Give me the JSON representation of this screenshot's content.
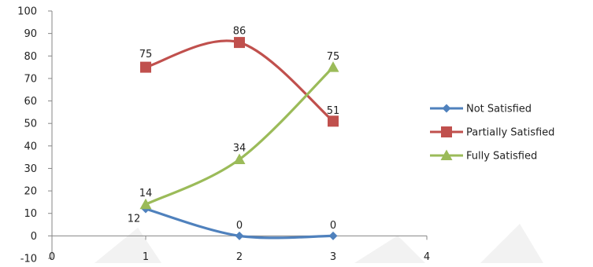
{
  "chart_data": {
    "type": "line",
    "title": "",
    "xlabel": "",
    "ylabel": "",
    "xlim": [
      0,
      4
    ],
    "ylim": [
      -10,
      100
    ],
    "x_ticks": [
      "0",
      "1",
      "2",
      "3",
      "4"
    ],
    "y_ticks": [
      "-10",
      "0",
      "10",
      "20",
      "30",
      "40",
      "50",
      "60",
      "70",
      "80",
      "90",
      "100"
    ],
    "grid": false,
    "smooth": true,
    "legend_position": "right",
    "series": [
      {
        "name": "Not Satisfied",
        "color": "#4f81bd",
        "marker": "diamond",
        "x": [
          1,
          2,
          3
        ],
        "values": [
          12,
          0,
          0
        ],
        "labels": [
          "12",
          "0",
          "0"
        ]
      },
      {
        "name": "Partially Satisfied",
        "color": "#c0504d",
        "marker": "square",
        "x": [
          1,
          2,
          3
        ],
        "values": [
          75,
          86,
          51
        ],
        "labels": [
          "75",
          "86",
          "51"
        ]
      },
      {
        "name": "Fully Satisfied",
        "color": "#9bbb59",
        "marker": "triangle",
        "x": [
          1,
          2,
          3
        ],
        "values": [
          14,
          34,
          75
        ],
        "labels": [
          "14",
          "34",
          "75"
        ]
      }
    ]
  }
}
